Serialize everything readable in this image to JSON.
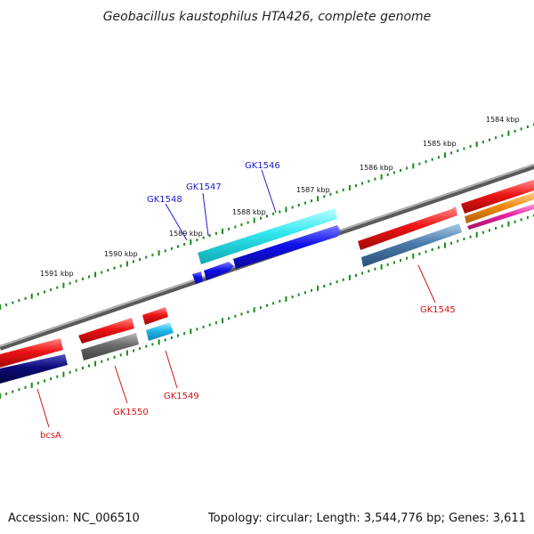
{
  "title": "Geobacillus kaustophilus HTA426, complete genome",
  "footer": {
    "accession": "Accession: NC_006510",
    "summary": "Topology: circular; Length: 3,544,776 bp; Genes: 3,611"
  },
  "scale_labels": [
    "1584 kbp",
    "1585 kbp",
    "1586 kbp",
    "1587 kbp",
    "1588 kbp",
    "1589 kbp",
    "1590 kbp",
    "1591 kbp"
  ],
  "gene_labels": {
    "GK1546": "GK1546",
    "GK1547": "GK1547",
    "GK1548": "GK1548",
    "GK1545": "GK1545",
    "GK1549": "GK1549",
    "GK1550": "GK1550",
    "bcsA": "bcsA"
  },
  "colors": {
    "backbone": "#8a8a8a",
    "tick": "#1a8a1a",
    "red": "#e01010",
    "navy": "#0a0a78",
    "gray": "#6e6e6e",
    "cyan": "#2fe0e8",
    "blue": "#1010e8",
    "steel": "#4a7aaa",
    "sky": "#20b8e8",
    "orange": "#f08a10",
    "magenta": "#e820a0",
    "label_blue": "#1a1ad0",
    "label_red": "#d01414"
  }
}
